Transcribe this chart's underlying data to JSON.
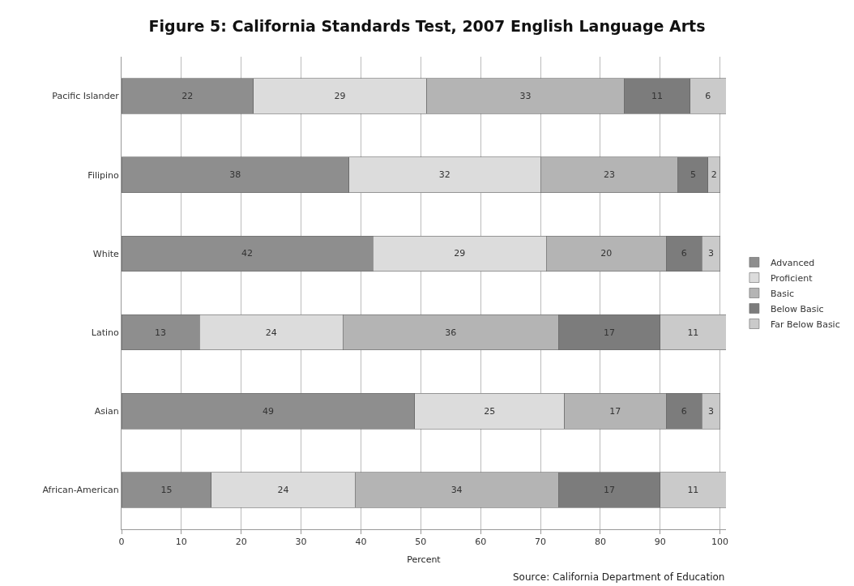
{
  "chart_data": {
    "type": "bar",
    "orientation": "horizontal",
    "stacked": true,
    "title": "Figure 5: California Standards Test, 2007 English Language Arts",
    "xlabel": "Percent",
    "annotations": [
      "Source: California Department of Education"
    ],
    "categories": [
      "Pacific Islander",
      "Filipino",
      "White",
      "Latino",
      "Asian",
      "African-American"
    ],
    "series": [
      {
        "name": "Advanced",
        "color": "#8e8e8e",
        "values": [
          22,
          38,
          42,
          13,
          49,
          15
        ]
      },
      {
        "name": "Proficient",
        "color": "#dcdcdc",
        "values": [
          29,
          32,
          29,
          24,
          25,
          24
        ]
      },
      {
        "name": "Basic",
        "color": "#b4b4b4",
        "values": [
          33,
          23,
          20,
          36,
          17,
          34
        ]
      },
      {
        "name": "Below Basic",
        "color": "#7c7c7c",
        "values": [
          11,
          5,
          6,
          17,
          6,
          17
        ]
      },
      {
        "name": "Far Below Basic",
        "color": "#cacaca",
        "values": [
          6,
          2,
          3,
          11,
          3,
          11
        ]
      }
    ],
    "xlim": [
      0,
      101
    ],
    "xticks": [
      0,
      10,
      20,
      30,
      40,
      50,
      60,
      70,
      80,
      90,
      100
    ],
    "grid": "x",
    "legend": "right",
    "data_labels": true
  }
}
